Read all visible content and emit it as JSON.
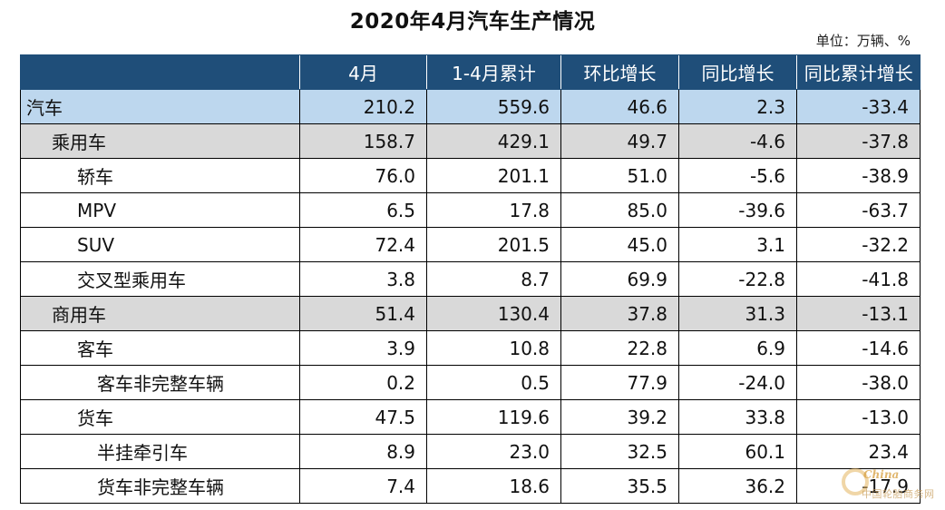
{
  "title": "2020年4月汽车生产情况",
  "unit": "单位：万辆、%",
  "columns": [
    "",
    "4月",
    "1-4月累计",
    "环比增长",
    "同比增长",
    "同比累计增长"
  ],
  "rows": [
    {
      "name": "汽车",
      "level": 0,
      "values": [
        "210.2",
        "559.6",
        "46.6",
        "2.3",
        "-33.4"
      ]
    },
    {
      "name": "乘用车",
      "level": 1,
      "values": [
        "158.7",
        "429.1",
        "49.7",
        "-4.6",
        "-37.8"
      ]
    },
    {
      "name": "轿车",
      "level": 2,
      "values": [
        "76.0",
        "201.1",
        "51.0",
        "-5.6",
        "-38.9"
      ]
    },
    {
      "name": "MPV",
      "level": 2,
      "values": [
        "6.5",
        "17.8",
        "85.0",
        "-39.6",
        "-63.7"
      ]
    },
    {
      "name": "SUV",
      "level": 2,
      "values": [
        "72.4",
        "201.5",
        "45.0",
        "3.1",
        "-32.2"
      ]
    },
    {
      "name": "交叉型乘用车",
      "level": 2,
      "values": [
        "3.8",
        "8.7",
        "69.9",
        "-22.8",
        "-41.8"
      ]
    },
    {
      "name": "商用车",
      "level": 1,
      "values": [
        "51.4",
        "130.4",
        "37.8",
        "31.3",
        "-13.1"
      ]
    },
    {
      "name": "客车",
      "level": 2,
      "values": [
        "3.9",
        "10.8",
        "22.8",
        "6.9",
        "-14.6"
      ]
    },
    {
      "name": "客车非完整车辆",
      "level": 3,
      "values": [
        "0.2",
        "0.5",
        "77.9",
        "-24.0",
        "-38.0"
      ]
    },
    {
      "name": "货车",
      "level": 2,
      "values": [
        "47.5",
        "119.6",
        "39.2",
        "33.8",
        "-13.0"
      ]
    },
    {
      "name": "半挂牵引车",
      "level": 3,
      "values": [
        "8.9",
        "23.0",
        "32.5",
        "60.1",
        "23.4"
      ]
    },
    {
      "name": "货车非完整车辆",
      "level": 3,
      "values": [
        "7.4",
        "18.6",
        "35.5",
        "36.2",
        "-17.9"
      ]
    }
  ],
  "watermark": {
    "main": "China",
    "sub": "中国轮胎商务网"
  },
  "colors": {
    "header_bg": "#1f4e79",
    "header_text": "#ffffff",
    "level0_bg": "#bdd7ee",
    "level1_bg": "#d9d9d9"
  }
}
